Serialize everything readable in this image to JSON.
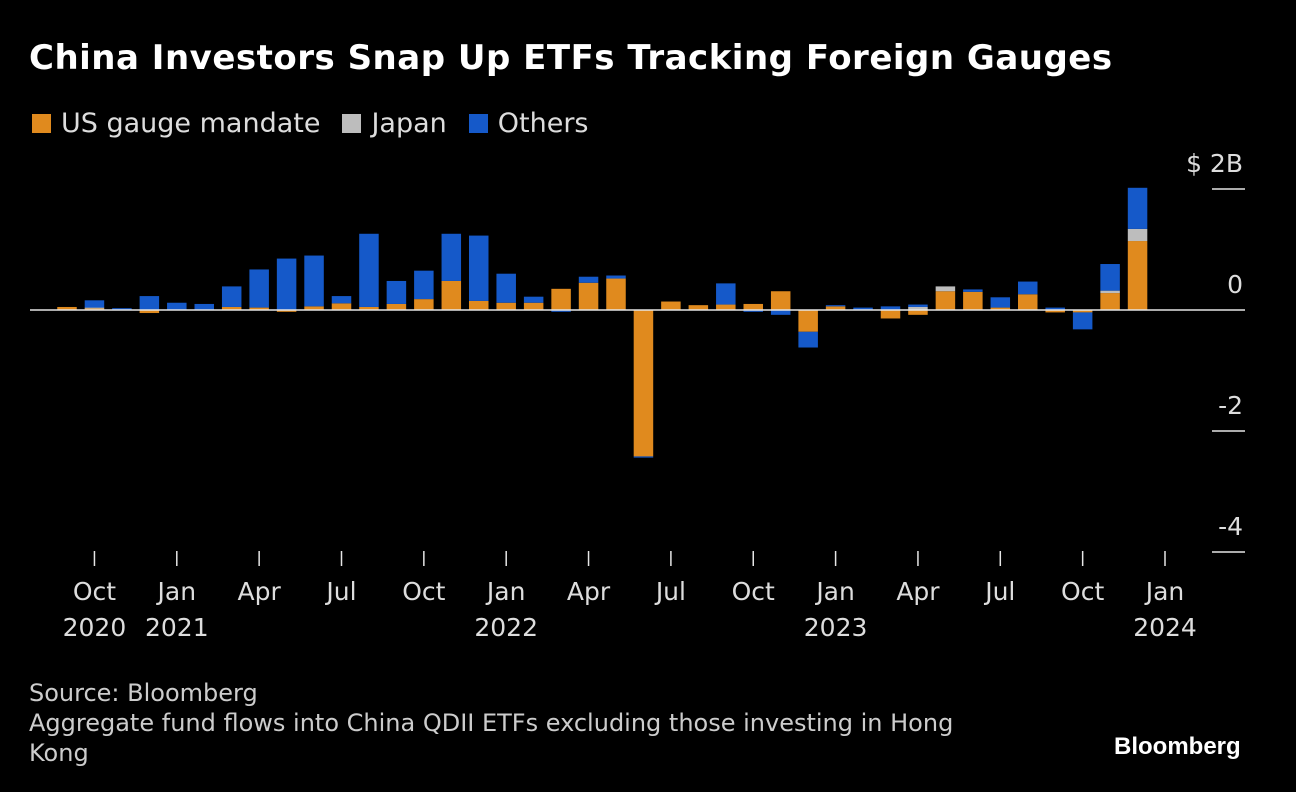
{
  "title": "China Investors Snap Up ETFs Tracking Foreign Gauges",
  "legend": [
    {
      "label": "US gauge mandate",
      "color": "#e08a1e"
    },
    {
      "label": "Japan",
      "color": "#bdbdbd"
    },
    {
      "label": "Others",
      "color": "#1559c9"
    }
  ],
  "footer": {
    "source": "Source: Bloomberg",
    "note_line1": "Aggregate fund flows into China QDII ETFs excluding those investing in Hong",
    "note_line2": "Kong"
  },
  "brand": "Bloomberg",
  "chart_data": {
    "type": "bar",
    "stacked": true,
    "title": "China Investors Snap Up ETFs Tracking Foreign Gauges",
    "unit": "$B",
    "ylim": [
      -4.2,
      2.4
    ],
    "yticks": [
      {
        "value": 2,
        "label": "$ 2B"
      },
      {
        "value": 0,
        "label": "0"
      },
      {
        "value": -2,
        "label": "-2"
      },
      {
        "value": -4,
        "label": "-4"
      }
    ],
    "categories": [
      "Sep 2020",
      "Oct 2020",
      "Nov 2020",
      "Dec 2020",
      "Jan 2021",
      "Feb 2021",
      "Mar 2021",
      "Apr 2021",
      "May 2021",
      "Jun 2021",
      "Jul 2021",
      "Aug 2021",
      "Sep 2021",
      "Oct 2021",
      "Nov 2021",
      "Dec 2021",
      "Jan 2022",
      "Feb 2022",
      "Mar 2022",
      "Apr 2022",
      "May 2022",
      "Jun 2022",
      "Jul 2022",
      "Aug 2022",
      "Sep 2022",
      "Oct 2022",
      "Nov 2022",
      "Dec 2022",
      "Jan 2023",
      "Feb 2023",
      "Mar 2023",
      "Apr 2023",
      "May 2023",
      "Jun 2023",
      "Jul 2023",
      "Aug 2023",
      "Sep 2023",
      "Oct 2023",
      "Nov 2023",
      "Dec 2023",
      "Jan 2024"
    ],
    "xticks": [
      {
        "index": 1,
        "label": "Oct",
        "year": "2020"
      },
      {
        "index": 4,
        "label": "Jan",
        "year": "2021"
      },
      {
        "index": 7,
        "label": "Apr",
        "year": ""
      },
      {
        "index": 10,
        "label": "Jul",
        "year": ""
      },
      {
        "index": 13,
        "label": "Oct",
        "year": ""
      },
      {
        "index": 16,
        "label": "Jan",
        "year": "2022"
      },
      {
        "index": 19,
        "label": "Apr",
        "year": ""
      },
      {
        "index": 22,
        "label": "Jul",
        "year": ""
      },
      {
        "index": 25,
        "label": "Oct",
        "year": ""
      },
      {
        "index": 28,
        "label": "Jan",
        "year": "2023"
      },
      {
        "index": 31,
        "label": "Apr",
        "year": ""
      },
      {
        "index": 34,
        "label": "Jul",
        "year": ""
      },
      {
        "index": 37,
        "label": "Oct",
        "year": ""
      },
      {
        "index": 40,
        "label": "Jan",
        "year": "2024"
      }
    ],
    "series": [
      {
        "name": "US gauge mandate",
        "color": "#e08a1e",
        "values": [
          0.05,
          0.03,
          0.0,
          -0.05,
          0.0,
          0.0,
          0.05,
          0.04,
          -0.03,
          0.06,
          0.11,
          0.05,
          0.1,
          0.18,
          0.48,
          0.15,
          0.12,
          0.12,
          0.35,
          0.45,
          0.52,
          -2.42,
          0.14,
          0.08,
          0.09,
          0.1,
          0.31,
          -0.36,
          0.06,
          0.0,
          -0.14,
          -0.08,
          0.31,
          0.3,
          0.04,
          0.26,
          -0.04,
          -0.04,
          0.28,
          1.14,
          0.0
        ]
      },
      {
        "name": "Japan",
        "color": "#bdbdbd",
        "values": [
          0.0,
          0.01,
          0.0,
          0.0,
          0.0,
          0.0,
          0.0,
          0.0,
          0.0,
          0.0,
          0.0,
          0.0,
          0.0,
          0.0,
          0.0,
          0.0,
          0.0,
          0.0,
          0.0,
          0.0,
          0.0,
          0.0,
          0.0,
          0.0,
          0.0,
          0.0,
          0.0,
          0.0,
          0.0,
          0.0,
          0.0,
          0.05,
          0.08,
          0.0,
          0.0,
          0.0,
          0.0,
          0.0,
          0.04,
          0.2,
          0.0
        ]
      },
      {
        "name": "Others",
        "color": "#1559c9",
        "values": [
          0.0,
          0.12,
          0.03,
          0.23,
          0.12,
          0.1,
          0.34,
          0.63,
          0.85,
          0.84,
          0.12,
          1.21,
          0.38,
          0.47,
          0.78,
          1.08,
          0.48,
          0.1,
          -0.03,
          0.1,
          0.05,
          -0.02,
          0.0,
          0.0,
          0.35,
          -0.03,
          -0.08,
          -0.26,
          0.02,
          0.04,
          0.06,
          0.04,
          0.0,
          0.04,
          0.17,
          0.21,
          0.04,
          -0.28,
          0.44,
          0.68,
          0.0
        ]
      }
    ]
  }
}
